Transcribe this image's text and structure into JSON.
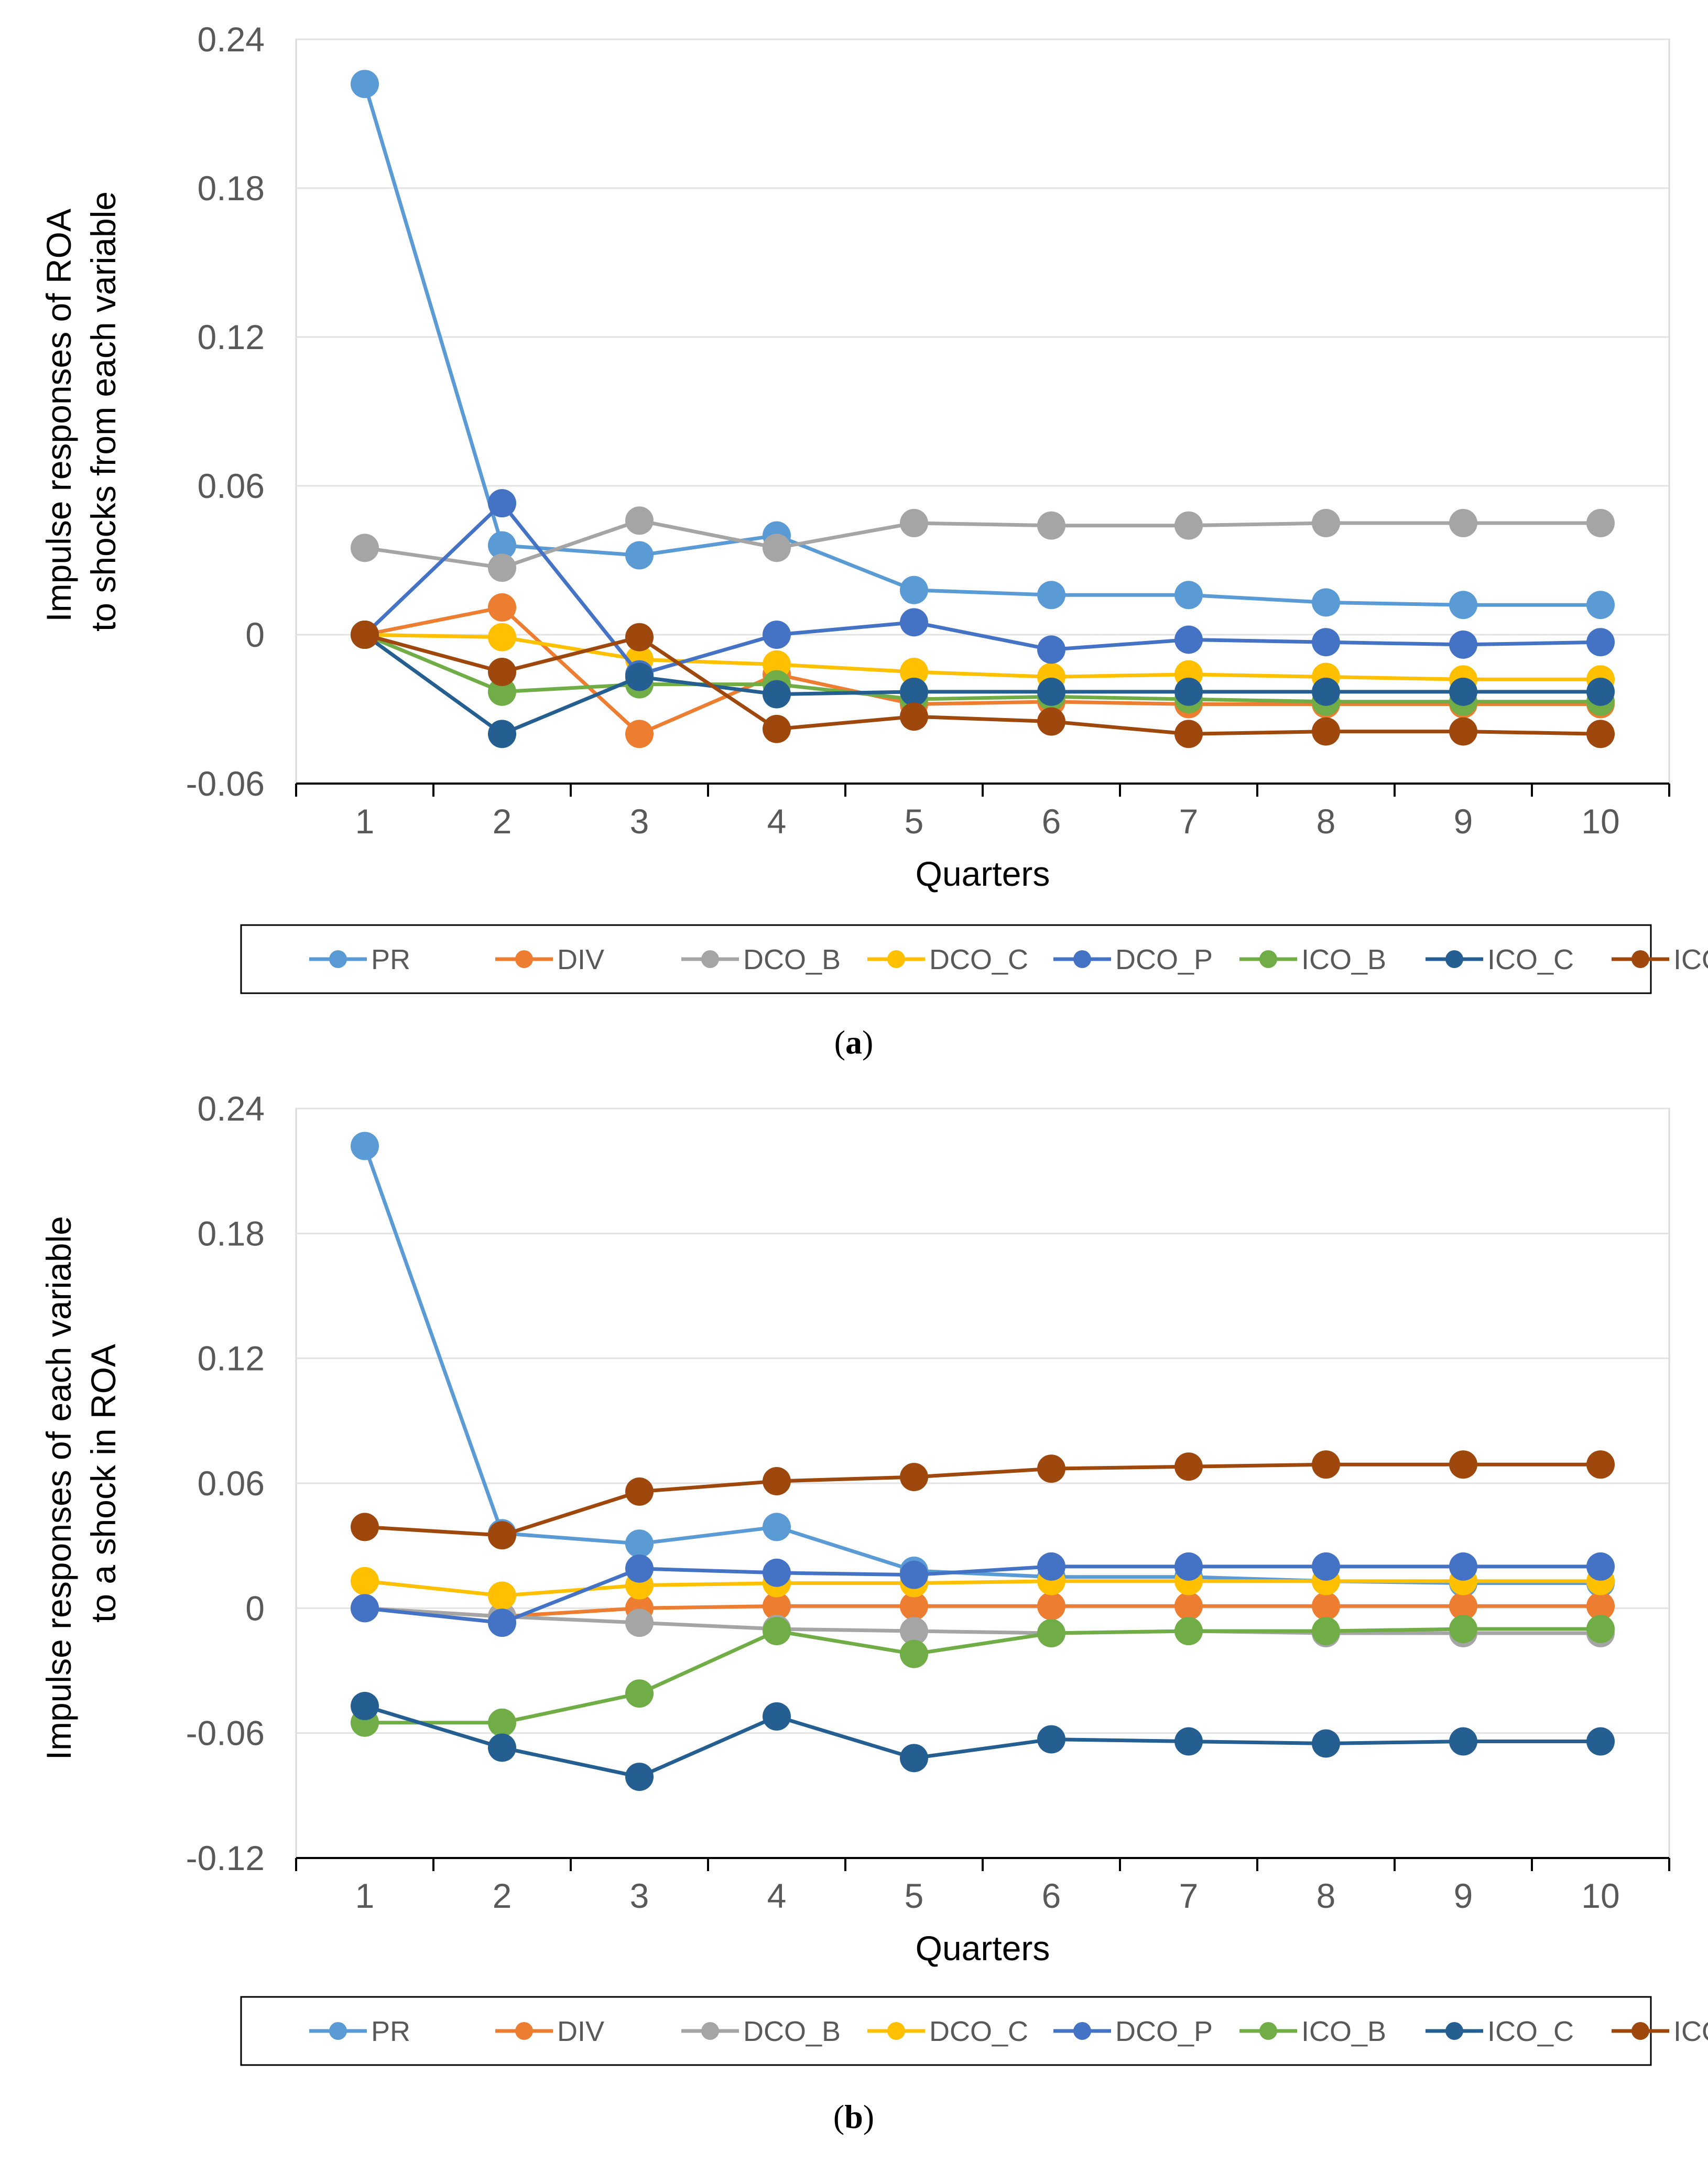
{
  "chart_data": [
    {
      "type": "line",
      "panel": "a",
      "caption": "(a)",
      "caption_letter": "a",
      "ylabel_lines": [
        "Impulse responses of ROA",
        "to shocks from each variable"
      ],
      "xlabel": "Quarters",
      "categories": [
        "1",
        "2",
        "3",
        "4",
        "5",
        "6",
        "7",
        "8",
        "9",
        "10"
      ],
      "ylim": [
        -0.06,
        0.24
      ],
      "yticks": [
        -0.06,
        0,
        0.06,
        0.12,
        0.18,
        0.24
      ],
      "ytick_labels": [
        "-0.06",
        "0",
        "0.06",
        "0.12",
        "0.18",
        "0.24"
      ],
      "grid": "horizontal",
      "legend_position": "bottom",
      "series": [
        {
          "name": "PR",
          "color": "#5B9BD5",
          "values": [
            0.222,
            0.036,
            0.032,
            0.04,
            0.018,
            0.016,
            0.016,
            0.013,
            0.012,
            0.012
          ]
        },
        {
          "name": "DIV",
          "color": "#ED7D31",
          "values": [
            0.0,
            0.011,
            -0.04,
            -0.016,
            -0.028,
            -0.027,
            -0.028,
            -0.028,
            -0.028,
            -0.028
          ]
        },
        {
          "name": "DCO_B",
          "color": "#A5A5A5",
          "values": [
            0.035,
            0.027,
            0.046,
            0.035,
            0.045,
            0.044,
            0.044,
            0.045,
            0.045,
            0.045
          ]
        },
        {
          "name": "DCO_C",
          "color": "#FFC000",
          "values": [
            0.0,
            -0.001,
            -0.01,
            -0.012,
            -0.015,
            -0.017,
            -0.016,
            -0.017,
            -0.018,
            -0.018
          ]
        },
        {
          "name": "DCO_P",
          "color": "#4472C4",
          "values": [
            0.0,
            0.053,
            -0.016,
            0.0,
            0.005,
            -0.006,
            -0.002,
            -0.003,
            -0.004,
            -0.003
          ]
        },
        {
          "name": "ICO_B",
          "color": "#70AD47",
          "values": [
            0.0,
            -0.023,
            -0.02,
            -0.02,
            -0.026,
            -0.025,
            -0.026,
            -0.027,
            -0.027,
            -0.027
          ]
        },
        {
          "name": "ICO_C",
          "color": "#255E91",
          "values": [
            0.0,
            -0.04,
            -0.017,
            -0.024,
            -0.023,
            -0.023,
            -0.023,
            -0.023,
            -0.023,
            -0.023
          ]
        },
        {
          "name": "ICO_P",
          "color": "#9E480E",
          "values": [
            0.0,
            -0.015,
            -0.001,
            -0.038,
            -0.033,
            -0.035,
            -0.04,
            -0.039,
            -0.039,
            -0.04
          ]
        }
      ]
    },
    {
      "type": "line",
      "panel": "b",
      "caption": "(b)",
      "caption_letter": "b",
      "ylabel_lines": [
        "Impulse responses of each variable",
        "to a shock in ROA"
      ],
      "xlabel": "Quarters",
      "categories": [
        "1",
        "2",
        "3",
        "4",
        "5",
        "6",
        "7",
        "8",
        "9",
        "10"
      ],
      "ylim": [
        -0.12,
        0.24
      ],
      "yticks": [
        -0.12,
        -0.06,
        0,
        0.06,
        0.12,
        0.18,
        0.24
      ],
      "ytick_labels": [
        "-0.12",
        "-0.06",
        "0",
        "0.06",
        "0.12",
        "0.18",
        "0.24"
      ],
      "grid": "horizontal",
      "legend_position": "bottom",
      "series": [
        {
          "name": "PR",
          "color": "#5B9BD5",
          "values": [
            0.222,
            0.036,
            0.031,
            0.039,
            0.018,
            0.015,
            0.015,
            0.013,
            0.012,
            0.012
          ]
        },
        {
          "name": "DIV",
          "color": "#ED7D31",
          "values": [
            0.0,
            -0.004,
            0.0,
            0.001,
            0.001,
            0.001,
            0.001,
            0.001,
            0.001,
            0.001
          ]
        },
        {
          "name": "DCO_B",
          "color": "#A5A5A5",
          "values": [
            0.0,
            -0.004,
            -0.007,
            -0.01,
            -0.011,
            -0.012,
            -0.011,
            -0.012,
            -0.012,
            -0.012
          ]
        },
        {
          "name": "DCO_C",
          "color": "#FFC000",
          "values": [
            0.013,
            0.006,
            0.011,
            0.012,
            0.012,
            0.013,
            0.013,
            0.013,
            0.013,
            0.013
          ]
        },
        {
          "name": "DCO_P",
          "color": "#4472C4",
          "values": [
            0.0,
            -0.007,
            0.019,
            0.017,
            0.016,
            0.02,
            0.02,
            0.02,
            0.02,
            0.02
          ]
        },
        {
          "name": "ICO_B",
          "color": "#70AD47",
          "values": [
            -0.055,
            -0.055,
            -0.041,
            -0.011,
            -0.022,
            -0.012,
            -0.011,
            -0.011,
            -0.01,
            -0.01
          ]
        },
        {
          "name": "ICO_C",
          "color": "#255E91",
          "values": [
            -0.047,
            -0.067,
            -0.081,
            -0.052,
            -0.072,
            -0.063,
            -0.064,
            -0.065,
            -0.064,
            -0.064
          ]
        },
        {
          "name": "ICO_P",
          "color": "#9E480E",
          "values": [
            0.039,
            0.035,
            0.056,
            0.061,
            0.063,
            0.067,
            0.068,
            0.069,
            0.069,
            0.069
          ]
        }
      ]
    }
  ]
}
